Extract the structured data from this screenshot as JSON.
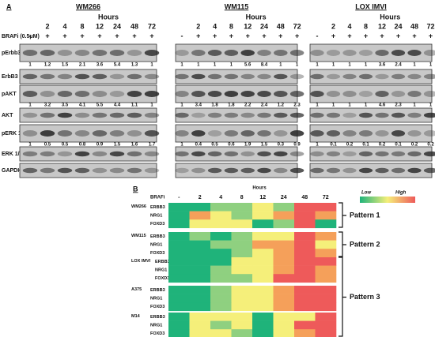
{
  "panel_a": {
    "label": "A",
    "hours": "Hours",
    "treatment_label": "BRAFi (0.5μM)",
    "times": [
      "2",
      "4",
      "8",
      "12",
      "24",
      "48",
      "72"
    ],
    "treatment": [
      "-",
      "+",
      "+",
      "+",
      "+",
      "+",
      "+",
      "+"
    ],
    "row_labels": [
      "pErbb3",
      "ErbB3",
      "pAKT",
      "AKT",
      "pERK 1/2",
      "ERK 1/2",
      "GAPDH"
    ],
    "blots": [
      {
        "title": "WM266",
        "quant": [
          [
            1,
            1.2,
            1.5,
            2.1,
            3.6,
            5.4,
            1.3,
            1
          ],
          [
            1,
            3.2,
            3.5,
            4.1,
            5.5,
            4.4,
            1.1,
            1
          ],
          [
            1,
            0.5,
            0.5,
            0.8,
            0.9,
            1.5,
            1.6,
            1.7
          ]
        ]
      },
      {
        "title": "WM115",
        "quant": [
          [
            1,
            1,
            1,
            1,
            5.6,
            8.4,
            1,
            1
          ],
          [
            1,
            3.4,
            1.8,
            1.8,
            2.2,
            2.4,
            1.2,
            2.3
          ],
          [
            1,
            0.4,
            0.5,
            0.6,
            1.9,
            1.5,
            0.3,
            0.9
          ]
        ]
      },
      {
        "title": "LOX IMVI",
        "quant": [
          [
            1,
            1,
            1,
            1,
            3.6,
            2.4,
            1,
            1
          ],
          [
            1,
            1,
            1,
            1,
            4.6,
            2.3,
            1,
            1
          ],
          [
            1,
            0.1,
            0.2,
            0.1,
            0.2,
            0.1,
            0.2,
            0.2
          ]
        ]
      }
    ]
  },
  "panel_b": {
    "label": "B",
    "hours": "Hours",
    "treatment_label": "BRAFi",
    "columns": [
      "-",
      "2",
      "4",
      "8",
      "12",
      "24",
      "48",
      "72"
    ],
    "legend": {
      "low": "Low",
      "high": "High",
      "colors": [
        "#1fb37a",
        "#f5ef7a",
        "#ee5a5a"
      ]
    },
    "groups": [
      {
        "name": "WM266",
        "genes": [
          "ERBB3",
          "NRG1",
          "FOXD3"
        ],
        "colors": [
          [
            "#1fb37a",
            "#1fb37a",
            "#8fd080",
            "#8fd080",
            "#f5ef7a",
            "#8fd080",
            "#ee5a5a",
            "#ee5a5a"
          ],
          [
            "#1fb37a",
            "#f5a05a",
            "#f5ef7a",
            "#8fd080",
            "#f5ef7a",
            "#f5a05a",
            "#ee5a5a",
            "#f5a05a"
          ],
          [
            "#1fb37a",
            "#f5ef7a",
            "#f5ef7a",
            "#f5ef7a",
            "#1fb37a",
            "#8fd080",
            "#ee5a5a",
            "#1fb37a"
          ]
        ]
      },
      {
        "name": "WM115",
        "genes": [
          "ERBB3",
          "NRG1",
          "FOXD3"
        ],
        "colors": [
          [
            "#1fb37a",
            "#8fd080",
            "#1fb37a",
            "#8fd080",
            "#f5ef7a",
            "#f5ef7a",
            "#ee5a5a",
            "#f5a05a"
          ],
          [
            "#1fb37a",
            "#1fb37a",
            "#8fd080",
            "#8fd080",
            "#f5a05a",
            "#f5a05a",
            "#ee5a5a",
            "#f5ef7a"
          ],
          [
            "#1fb37a",
            "#1fb37a",
            "#1fb37a",
            "#8fd080",
            "#f5ef7a",
            "#f5a05a",
            "#ee5a5a",
            "#f5a05a"
          ]
        ]
      },
      {
        "name": "LOX IMVI",
        "genes": [
          "ERBB3",
          "NRG1",
          "FOXD3"
        ],
        "colors": [
          [
            "#1fb37a",
            "#1fb37a",
            "#1fb37a",
            "#f5ef7a",
            "#f5ef7a",
            "#f5a05a",
            "#ee5a5a",
            "#ee5a5a"
          ],
          [
            "#1fb37a",
            "#1fb37a",
            "#8fd080",
            "#f5ef7a",
            "#f5ef7a",
            "#f5a05a",
            "#ee5a5a",
            "#f5a05a"
          ],
          [
            "#1fb37a",
            "#1fb37a",
            "#8fd080",
            "#8fd080",
            "#f5ef7a",
            "#ee5a5a",
            "#ee5a5a",
            "#f5a05a"
          ]
        ]
      },
      {
        "name": "A375",
        "genes": [
          "ERBB3",
          "NRG1",
          "FOXD3"
        ],
        "colors": [
          [
            "#1fb37a",
            "#1fb37a",
            "#8fd080",
            "#f5ef7a",
            "#f5ef7a",
            "#f5a05a",
            "#ee5a5a",
            "#ee5a5a"
          ],
          [
            "#1fb37a",
            "#1fb37a",
            "#8fd080",
            "#f5ef7a",
            "#f5ef7a",
            "#f5a05a",
            "#ee5a5a",
            "#ee5a5a"
          ],
          [
            "#1fb37a",
            "#1fb37a",
            "#8fd080",
            "#f5ef7a",
            "#f5ef7a",
            "#f5a05a",
            "#ee5a5a",
            "#ee5a5a"
          ]
        ]
      },
      {
        "name": "M14",
        "genes": [
          "ERBB3",
          "NRG1",
          "FOXD3"
        ],
        "colors": [
          [
            "#1fb37a",
            "#f5ef7a",
            "#f5ef7a",
            "#f5ef7a",
            "#1fb37a",
            "#f5ef7a",
            "#f5ef7a",
            "#ee5a5a"
          ],
          [
            "#1fb37a",
            "#f5ef7a",
            "#8fd080",
            "#f5ef7a",
            "#1fb37a",
            "#f5ef7a",
            "#ee5a5a",
            "#ee5a5a"
          ],
          [
            "#1fb37a",
            "#f5ef7a",
            "#f5ef7a",
            "#8fd080",
            "#1fb37a",
            "#f5ef7a",
            "#f5a05a",
            "#ee5a5a"
          ]
        ]
      }
    ],
    "patterns": [
      "Pattern 1",
      "Pattern 2",
      "Pattern 3"
    ]
  }
}
